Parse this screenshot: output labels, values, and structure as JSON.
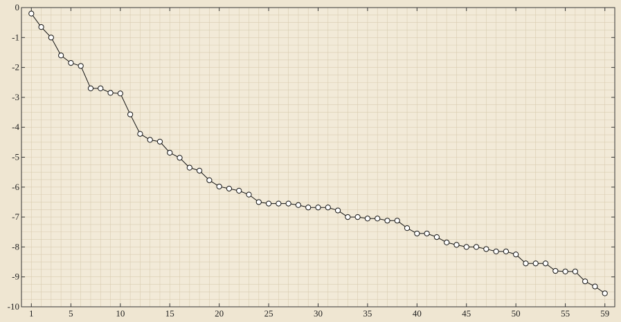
{
  "chart_data": {
    "type": "line",
    "title": "",
    "xlabel": "",
    "ylabel": "",
    "xlim": [
      0,
      60
    ],
    "ylim": [
      -10,
      0
    ],
    "grid": true,
    "x_ticks": [
      1,
      5,
      10,
      15,
      20,
      25,
      30,
      35,
      40,
      45,
      50,
      55,
      59
    ],
    "x_tick_labels": [
      "1",
      "5",
      "10",
      "15",
      "20",
      "25",
      "30",
      "35",
      "40",
      "45",
      "50",
      "55",
      "59"
    ],
    "y_ticks": [
      0,
      -1,
      -2,
      -3,
      -4,
      -5,
      -6,
      -7,
      -8,
      -9,
      -10
    ],
    "y_tick_labels": [
      "0",
      "-1",
      "-2",
      "-3",
      "-4",
      "-5",
      "-6",
      "-7",
      "-8",
      "-9",
      "-10"
    ],
    "colors": {
      "background": "#efe6d2",
      "line": "#111111",
      "marker_fill": "#ffffff",
      "grid": "#d9ccb0"
    },
    "series": [
      {
        "x": [
          1,
          2,
          3,
          4,
          5,
          6,
          7,
          8,
          9,
          10,
          11,
          12,
          13,
          14,
          15,
          16,
          17,
          18,
          19,
          20,
          21,
          22,
          23,
          24,
          25,
          26,
          27,
          28,
          29,
          30,
          31,
          32,
          33,
          34,
          35,
          36,
          37,
          38,
          39,
          40,
          41,
          42,
          43,
          44,
          45,
          46,
          47,
          48,
          49,
          50,
          51,
          52,
          53,
          54,
          55,
          56,
          57,
          58,
          59
        ],
        "values": [
          -0.2,
          -0.65,
          -1.0,
          -1.6,
          -1.85,
          -1.95,
          -2.7,
          -2.7,
          -2.85,
          -2.87,
          -3.57,
          -4.22,
          -4.42,
          -4.48,
          -4.85,
          -5.02,
          -5.35,
          -5.45,
          -5.77,
          -5.98,
          -6.05,
          -6.12,
          -6.25,
          -6.5,
          -6.55,
          -6.55,
          -6.55,
          -6.6,
          -6.68,
          -6.68,
          -6.68,
          -6.78,
          -7.0,
          -7.0,
          -7.05,
          -7.05,
          -7.12,
          -7.12,
          -7.37,
          -7.55,
          -7.55,
          -7.67,
          -7.85,
          -7.93,
          -8.0,
          -8.0,
          -8.07,
          -8.15,
          -8.15,
          -8.25,
          -8.55,
          -8.55,
          -8.55,
          -8.8,
          -8.82,
          -8.82,
          -9.15,
          -9.32,
          -9.55
        ]
      }
    ]
  }
}
